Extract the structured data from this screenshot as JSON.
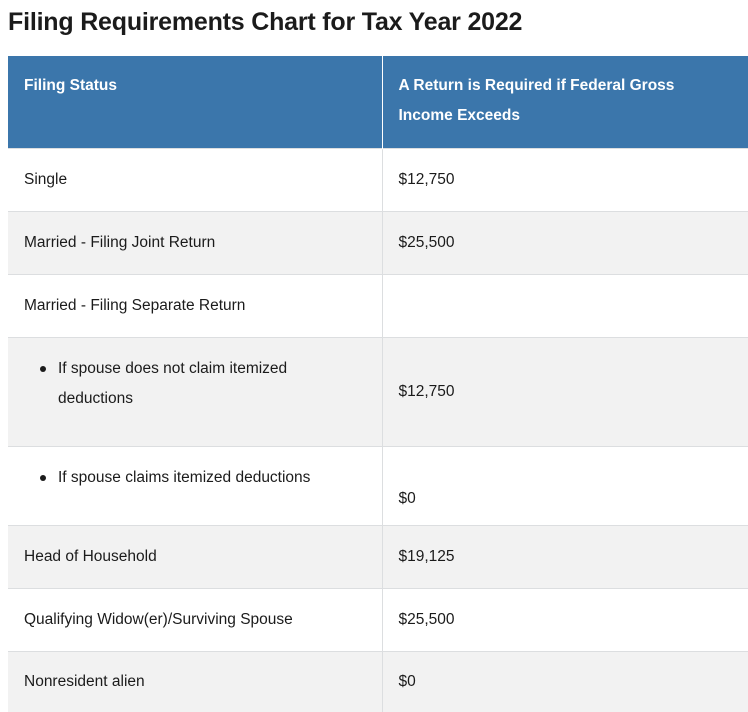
{
  "title": "Filing Requirements Chart for Tax Year 2022",
  "table": {
    "headers": {
      "status": "Filing Status",
      "threshold": "A Return is Required if Federal Gross Income Exceeds"
    },
    "rows": {
      "single": {
        "status": "Single",
        "amount": "$12,750"
      },
      "married_joint": {
        "status": "Married - Filing Joint Return",
        "amount": "$25,500"
      },
      "married_separate": {
        "status": "Married - Filing Separate Return",
        "amount": ""
      },
      "sep_no_itemize": {
        "status": "If spouse does not claim itemized deductions",
        "amount": "$12,750"
      },
      "sep_itemize": {
        "status": "If spouse claims itemized deductions",
        "amount": "$0"
      },
      "head_household": {
        "status": "Head of Household",
        "amount": "$19,125"
      },
      "widow": {
        "status": "Qualifying Widow(er)/Surviving Spouse",
        "amount": "$25,500"
      },
      "nonresident": {
        "status": "Nonresident alien",
        "amount": "$0"
      }
    }
  }
}
